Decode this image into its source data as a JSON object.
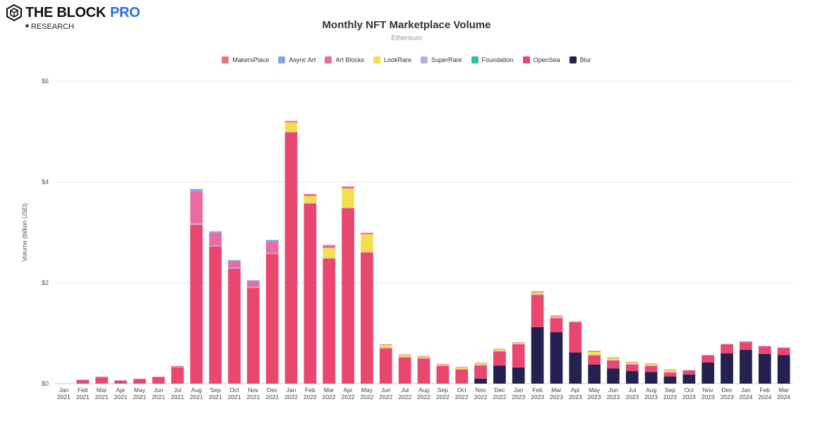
{
  "brand": {
    "name": "THE BLOCK",
    "tier": "PRO",
    "sub": "RESEARCH"
  },
  "colors": {
    "MakersPlace": "#e87a74",
    "Async Art": "#7fa7e0",
    "Art Blocks": "#ea6aa2",
    "LookRare": "#f4e04d",
    "SuperRare": "#b9aedb",
    "Foundation": "#2dbfa0",
    "OpenSea": "#ea4770",
    "Blur": "#242150",
    "grid": "#e6e6e6",
    "axis": "#cccccc"
  },
  "chart_data": {
    "type": "bar",
    "stacked": true,
    "title": "Monthly NFT Marketplace Volume",
    "subtitle": "Ethereum",
    "xlabel": "",
    "ylabel": "Volume (billion USD)",
    "ylim": [
      0,
      6
    ],
    "yticks": [
      0,
      2,
      4,
      6
    ],
    "ytick_labels": [
      "$0",
      "$2",
      "$4",
      "$6"
    ],
    "legend_position": "top",
    "grid": true,
    "categories": [
      "Jan 2021",
      "Feb 2021",
      "Mar 2021",
      "Apr 2021",
      "May 2021",
      "Jun 2021",
      "Jul 2021",
      "Aug 2021",
      "Sep 2021",
      "Oct 2021",
      "Nov 2021",
      "Dec 2021",
      "Jan 2022",
      "Feb 2022",
      "Mar 2022",
      "Apr 2022",
      "May 2022",
      "Jun 2022",
      "Jul 2022",
      "Aug 2022",
      "Sep 2022",
      "Oct 2022",
      "Nov 2022",
      "Dec 2022",
      "Jan 2023",
      "Feb 2023",
      "Mar 2023",
      "Apr 2023",
      "May 2023",
      "Jun 2023",
      "Jul 2023",
      "Aug 2023",
      "Sep 2023",
      "Oct 2023",
      "Nov 2023",
      "Dec 2023",
      "Jan 2024",
      "Feb 2024",
      "Mar 2024"
    ],
    "series": [
      {
        "name": "Blur",
        "values": [
          0,
          0,
          0,
          0,
          0,
          0,
          0,
          0,
          0,
          0,
          0,
          0,
          0,
          0,
          0,
          0,
          0,
          0,
          0,
          0,
          0,
          0,
          0.1,
          0.36,
          0.32,
          1.12,
          1.02,
          0.62,
          0.38,
          0.3,
          0.25,
          0.23,
          0.14,
          0.18,
          0.42,
          0.6,
          0.67,
          0.59,
          0.57
        ]
      },
      {
        "name": "OpenSea",
        "values": [
          0,
          0.07,
          0.12,
          0.06,
          0.09,
          0.13,
          0.32,
          3.15,
          2.72,
          2.28,
          1.9,
          2.57,
          4.98,
          3.57,
          2.48,
          3.48,
          2.6,
          0.7,
          0.52,
          0.5,
          0.35,
          0.28,
          0.26,
          0.28,
          0.46,
          0.64,
          0.28,
          0.6,
          0.18,
          0.16,
          0.13,
          0.12,
          0.08,
          0.08,
          0.14,
          0.18,
          0.15,
          0.15,
          0.14
        ]
      },
      {
        "name": "Foundation",
        "values": [
          0,
          0,
          0,
          0,
          0,
          0,
          0,
          0,
          0,
          0,
          0,
          0,
          0,
          0,
          0,
          0,
          0,
          0,
          0,
          0,
          0,
          0,
          0,
          0,
          0,
          0,
          0,
          0,
          0,
          0,
          0,
          0,
          0,
          0,
          0,
          0,
          0,
          0,
          0
        ]
      },
      {
        "name": "SuperRare",
        "values": [
          0,
          0.01,
          0.01,
          0.01,
          0.01,
          0.01,
          0.01,
          0.03,
          0.02,
          0.02,
          0.02,
          0.02,
          0.02,
          0.02,
          0.01,
          0.01,
          0.01,
          0.01,
          0.01,
          0.01,
          0.01,
          0.01,
          0.01,
          0.01,
          0.01,
          0.01,
          0.01,
          0.01,
          0.01,
          0.01,
          0.01,
          0.01,
          0.01,
          0.01,
          0.01,
          0.01,
          0.01,
          0.01,
          0.01
        ]
      },
      {
        "name": "LookRare",
        "values": [
          0,
          0,
          0,
          0,
          0,
          0,
          0,
          0,
          0,
          0,
          0,
          0,
          0.18,
          0.13,
          0.2,
          0.38,
          0.35,
          0.06,
          0.04,
          0.03,
          0.02,
          0.03,
          0.03,
          0.03,
          0.02,
          0.04,
          0.02,
          0.01,
          0.06,
          0.04,
          0.03,
          0.03,
          0.04,
          0,
          0,
          0,
          0,
          0,
          0
        ]
      },
      {
        "name": "Art Blocks",
        "values": [
          0,
          0,
          0,
          0,
          0,
          0,
          0.02,
          0.63,
          0.25,
          0.12,
          0.1,
          0.22,
          0.03,
          0.04,
          0.06,
          0.04,
          0.03,
          0.01,
          0.01,
          0.01,
          0.01,
          0.01,
          0.01,
          0.01,
          0.01,
          0.02,
          0.02,
          0,
          0.02,
          0.01,
          0.01,
          0.01,
          0.01,
          0,
          0,
          0,
          0.01,
          0,
          0
        ]
      },
      {
        "name": "Async Art",
        "values": [
          0,
          0,
          0,
          0,
          0,
          0,
          0,
          0.04,
          0.02,
          0.03,
          0.03,
          0.04,
          0,
          0,
          0,
          0,
          0,
          0,
          0,
          0,
          0,
          0,
          0,
          0,
          0,
          0,
          0,
          0,
          0,
          0,
          0,
          0,
          0,
          0,
          0,
          0,
          0,
          0,
          0
        ]
      },
      {
        "name": "MakersPlace",
        "values": [
          0,
          0,
          0.01,
          0,
          0,
          0,
          0,
          0.01,
          0.01,
          0,
          0,
          0,
          0,
          0,
          0,
          0,
          0,
          0,
          0,
          0,
          0,
          0,
          0,
          0,
          0,
          0,
          0,
          0,
          0,
          0,
          0,
          0,
          0,
          0,
          0,
          0,
          0,
          0,
          0
        ]
      }
    ],
    "legend_order": [
      "MakersPlace",
      "Async Art",
      "Art Blocks",
      "LookRare",
      "SuperRare",
      "Foundation",
      "OpenSea",
      "Blur"
    ]
  }
}
